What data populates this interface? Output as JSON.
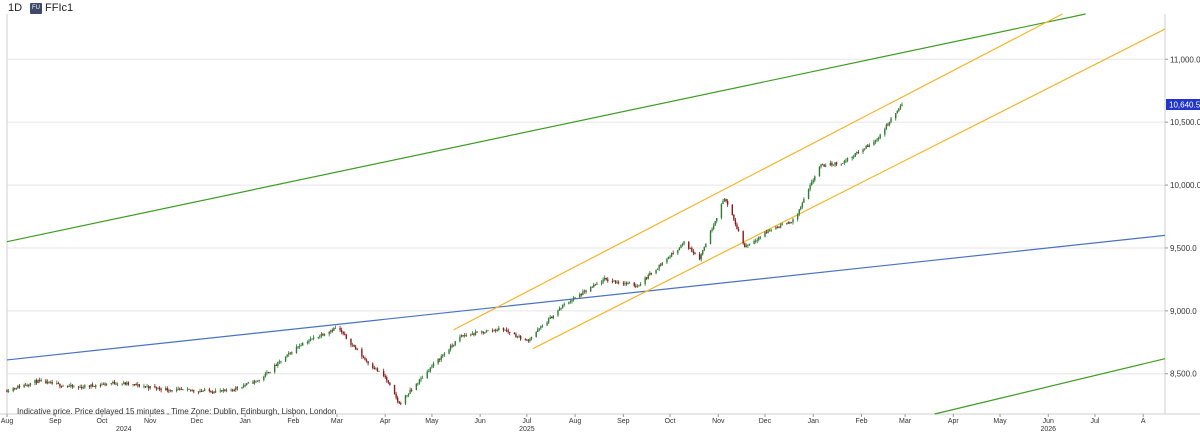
{
  "header": {
    "interval": "1D",
    "symbol_badge": "FU",
    "symbol": "FFIc1"
  },
  "last_price_label": "10,640.5",
  "footnote": "Indicative price. Price delayed 15 minutes , Time Zone: Dublin, Edinburgh, Lisbon, London",
  "colors": {
    "up": "#2e7d32",
    "down": "#8b1a1a",
    "green_line": "#3f9c23",
    "blue_line": "#4a72c4",
    "channel": "#f5b52a",
    "badge": "#2335c9",
    "grid": "#e6e6e6"
  },
  "chart_data": {
    "type": "candlestick",
    "y_ticks": [
      {
        "value": 8500,
        "label": "8,500.0"
      },
      {
        "value": 9000,
        "label": "9,000.0"
      },
      {
        "value": 9500,
        "label": "9,500.0"
      },
      {
        "value": 10000,
        "label": "10,000.0"
      },
      {
        "value": 10500,
        "label": "10,500.0"
      },
      {
        "value": 11000,
        "label": "11,000.0"
      }
    ],
    "ylim": [
      8180,
      11360
    ],
    "xlim": [
      "2024-08-01",
      "2026-08-15"
    ],
    "x_ticks": [
      {
        "date": "2024-08-01",
        "label": "Aug"
      },
      {
        "date": "2024-09-01",
        "label": "Sep"
      },
      {
        "date": "2024-10-01",
        "label": "Oct"
      },
      {
        "date": "2024-11-01",
        "label": "Nov"
      },
      {
        "date": "2024-12-01",
        "label": "Dec"
      },
      {
        "date": "2025-01-01",
        "label": "Jan"
      },
      {
        "date": "2025-02-01",
        "label": "Feb"
      },
      {
        "date": "2025-03-01",
        "label": "Mar"
      },
      {
        "date": "2025-04-01",
        "label": "Apr"
      },
      {
        "date": "2025-05-01",
        "label": "May"
      },
      {
        "date": "2025-06-01",
        "label": "Jun"
      },
      {
        "date": "2025-07-01",
        "label": "Jul"
      },
      {
        "date": "2025-08-01",
        "label": "Aug"
      },
      {
        "date": "2025-09-01",
        "label": "Sep"
      },
      {
        "date": "2025-10-01",
        "label": "Oct"
      },
      {
        "date": "2025-11-01",
        "label": "Nov"
      },
      {
        "date": "2025-12-01",
        "label": "Dec"
      },
      {
        "date": "2026-01-01",
        "label": "Jan"
      },
      {
        "date": "2026-02-01",
        "label": "Feb"
      },
      {
        "date": "2026-03-01",
        "label": "Mar"
      },
      {
        "date": "2026-04-01",
        "label": "Apr"
      },
      {
        "date": "2026-05-01",
        "label": "May"
      },
      {
        "date": "2026-06-01",
        "label": "Jun"
      },
      {
        "date": "2026-07-01",
        "label": "Jul"
      },
      {
        "date": "2026-08-01",
        "label": "A"
      }
    ],
    "year_labels": [
      {
        "date": "2024-10-15",
        "label": "2024"
      },
      {
        "date": "2025-07-01",
        "label": "2025"
      },
      {
        "date": "2026-06-01",
        "label": "2026"
      }
    ],
    "price_path": [
      [
        "2024-08-01",
        8370
      ],
      [
        "2024-08-20",
        8440
      ],
      [
        "2024-09-15",
        8390
      ],
      [
        "2024-10-10",
        8430
      ],
      [
        "2024-11-15",
        8370
      ],
      [
        "2024-12-20",
        8360
      ],
      [
        "2025-01-10",
        8450
      ],
      [
        "2025-02-05",
        8730
      ],
      [
        "2025-03-01",
        8870
      ],
      [
        "2025-03-20",
        8600
      ],
      [
        "2025-04-01",
        8470
      ],
      [
        "2025-04-10",
        8260
      ],
      [
        "2025-05-01",
        8560
      ],
      [
        "2025-05-20",
        8800
      ],
      [
        "2025-06-15",
        8860
      ],
      [
        "2025-07-01",
        8760
      ],
      [
        "2025-07-25",
        9050
      ],
      [
        "2025-08-20",
        9250
      ],
      [
        "2025-09-10",
        9200
      ],
      [
        "2025-10-10",
        9540
      ],
      [
        "2025-10-20",
        9420
      ],
      [
        "2025-11-05",
        9900
      ],
      [
        "2025-11-18",
        9510
      ],
      [
        "2025-12-05",
        9650
      ],
      [
        "2025-12-20",
        9720
      ],
      [
        "2026-01-05",
        10150
      ],
      [
        "2026-01-20",
        10180
      ],
      [
        "2026-02-10",
        10350
      ],
      [
        "2026-02-27",
        10640.5
      ]
    ],
    "trendlines": [
      {
        "id": "green-upper",
        "color": "#3f9c23",
        "points": [
          [
            "2024-08-01",
            9550
          ],
          [
            "2026-06-25",
            11360
          ]
        ]
      },
      {
        "id": "green-lower",
        "color": "#3f9c23",
        "points": [
          [
            "2026-03-20",
            8180
          ],
          [
            "2026-08-15",
            8620
          ]
        ]
      },
      {
        "id": "blue",
        "color": "#4a72c4",
        "points": [
          [
            "2024-08-01",
            8610
          ],
          [
            "2026-08-15",
            9600
          ]
        ]
      },
      {
        "id": "channel-upper",
        "color": "#f5b52a",
        "points": [
          [
            "2025-05-15",
            8850
          ],
          [
            "2026-06-10",
            11360
          ]
        ]
      },
      {
        "id": "channel-lower",
        "color": "#f5b52a",
        "points": [
          [
            "2025-07-05",
            8700
          ],
          [
            "2026-08-15",
            11240
          ]
        ]
      }
    ],
    "last_price": 10640.5
  }
}
